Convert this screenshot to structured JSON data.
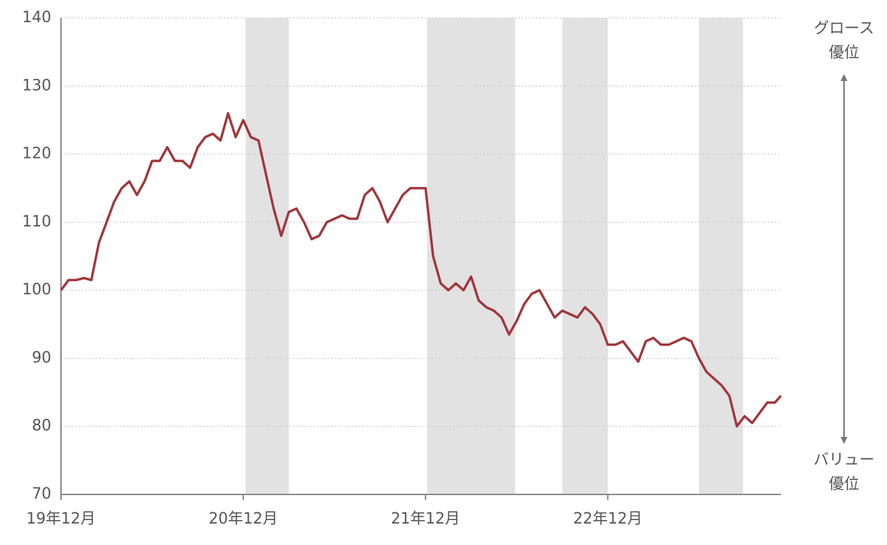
{
  "chart_data": {
    "type": "line",
    "x": [
      0,
      0.5,
      1,
      1.5,
      2,
      2.5,
      3,
      3.5,
      4,
      4.5,
      5,
      5.5,
      6,
      6.5,
      7,
      7.5,
      8,
      8.5,
      9,
      9.5,
      10,
      10.5,
      11,
      11.5,
      12,
      12.5,
      13,
      13.5,
      14,
      14.5,
      15,
      15.5,
      16,
      16.5,
      17,
      17.5,
      18,
      18.5,
      19,
      19.5,
      20,
      20.5,
      21,
      21.5,
      22,
      22.5,
      23,
      23.5,
      24,
      24.5,
      25,
      25.5,
      26,
      26.5,
      27,
      27.5,
      28,
      28.5,
      29,
      29.5,
      30,
      30.5,
      31,
      31.5,
      32,
      32.5,
      33,
      33.5,
      34,
      34.5,
      35,
      35.5,
      36,
      36.5,
      37,
      37.5,
      38,
      38.5,
      39,
      39.5,
      40,
      40.5,
      41,
      41.5,
      42,
      42.5,
      43,
      43.5,
      44,
      44.5,
      45,
      45.5,
      46,
      46.5,
      47,
      47.4
    ],
    "series": [
      {
        "color": "#a0373c",
        "values": [
          100,
          101.5,
          101.5,
          101.8,
          101.5,
          107,
          110,
          113,
          115,
          116,
          114,
          116,
          119,
          119,
          121,
          119,
          119,
          118,
          121,
          122.5,
          123,
          122,
          126,
          122.5,
          125,
          122.5,
          122,
          117,
          112,
          108,
          111.5,
          112,
          110,
          107.5,
          108,
          110,
          110.5,
          111,
          110.5,
          110.5,
          114,
          115,
          113,
          110,
          112,
          114,
          115,
          115,
          115,
          105,
          101,
          100,
          101,
          100,
          102,
          98.5,
          97.5,
          97,
          96,
          93.5,
          95.5,
          98,
          99.5,
          100,
          98,
          96,
          97,
          96.5,
          96,
          97.5,
          96.5,
          95,
          92,
          92,
          92.5,
          91,
          89.5,
          92.5,
          93,
          92,
          92,
          92.5,
          93,
          92.5,
          90,
          88,
          87,
          86,
          84.5,
          80,
          81.5,
          80.5,
          82,
          83.5,
          83.5,
          84.5
        ]
      }
    ],
    "xlim": [
      0,
      47.4
    ],
    "xticks": [
      {
        "value": 0,
        "label": "19年12月"
      },
      {
        "value": 12,
        "label": "20年12月"
      },
      {
        "value": 24,
        "label": "21年12月"
      },
      {
        "value": 36,
        "label": "22年12月"
      }
    ],
    "ylim": [
      70,
      140
    ],
    "yticks": [
      70,
      80,
      90,
      100,
      110,
      120,
      130,
      140
    ],
    "grid": true,
    "shaded": [
      [
        12.15,
        15
      ],
      [
        24.1,
        29.9
      ],
      [
        33,
        36
      ],
      [
        42,
        44.9
      ]
    ],
    "shade_color": "#e2e2e2",
    "annotations": {
      "top": [
        "グロース",
        "優位"
      ],
      "bottom": [
        "バリュー",
        "優位"
      ]
    }
  }
}
